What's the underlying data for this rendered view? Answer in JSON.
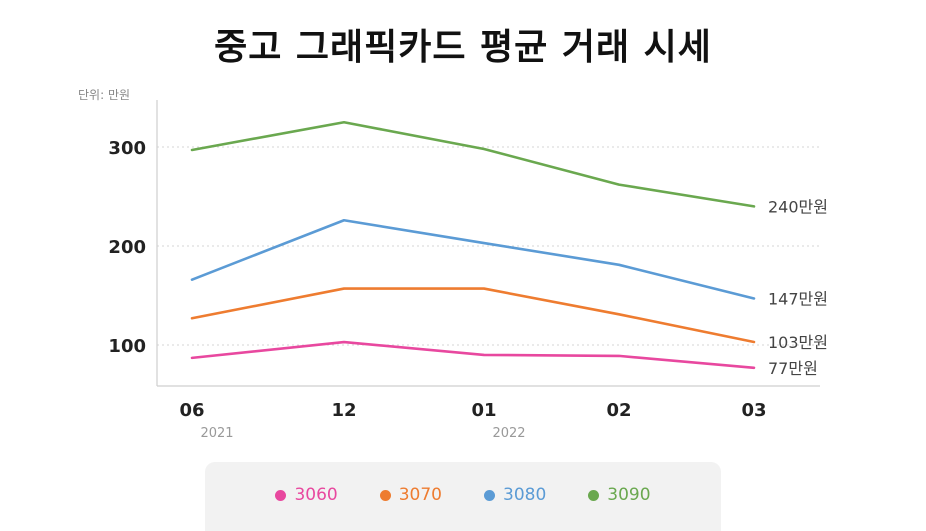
{
  "title": "중고 그래픽카드 평균 거래 시세",
  "unit_label": "단위: 만원",
  "chart_data": {
    "type": "line",
    "title": "중고 그래픽카드 평균 거래 시세",
    "categories": [
      "06",
      "12",
      "01",
      "02",
      "03"
    ],
    "category_years": [
      "2021",
      "",
      "2022",
      "",
      ""
    ],
    "ylim": [
      60,
      340
    ],
    "yticks": [
      100,
      200,
      300
    ],
    "ylabel": "단위: 만원",
    "grid": "horizontal dotted",
    "series": [
      {
        "name": "3060",
        "color": "#e8489f",
        "values": [
          87,
          103,
          90,
          89,
          77
        ],
        "end_label": "77만원"
      },
      {
        "name": "3070",
        "color": "#ee7c30",
        "values": [
          127,
          157,
          157,
          131,
          103
        ],
        "end_label": "103만원"
      },
      {
        "name": "3080",
        "color": "#5b9bd5",
        "values": [
          166,
          226,
          203,
          181,
          147
        ],
        "end_label": "147만원"
      },
      {
        "name": "3090",
        "color": "#6aa84f",
        "values": [
          297,
          325,
          298,
          262,
          240
        ],
        "end_label": "240만원"
      }
    ]
  }
}
